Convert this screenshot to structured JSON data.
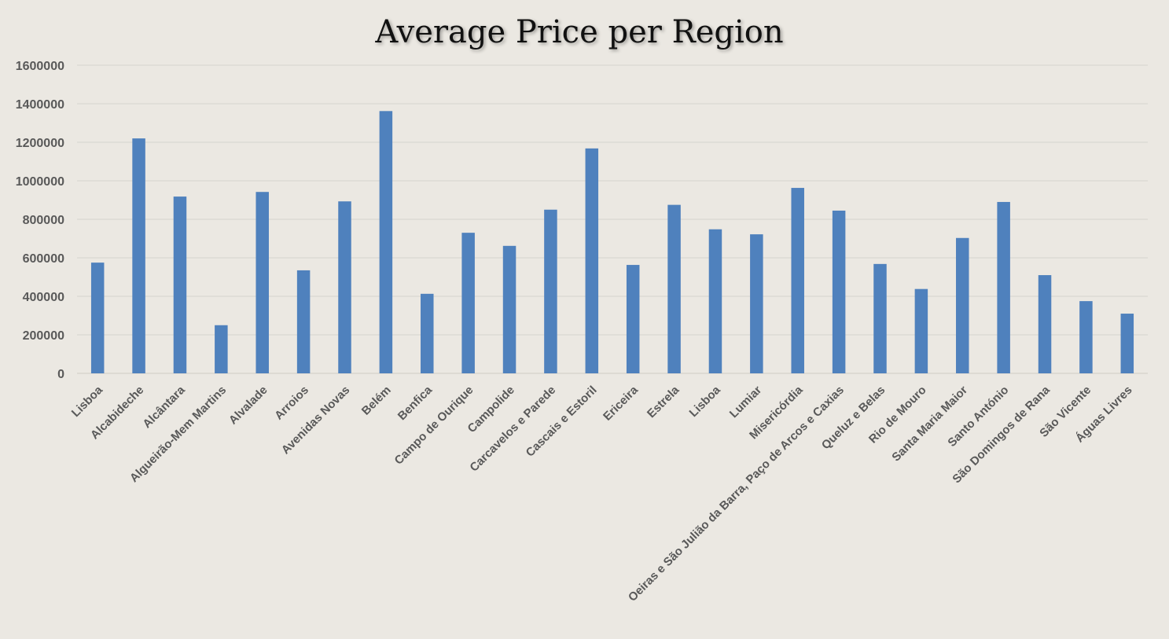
{
  "chart_data": {
    "type": "bar",
    "title": "Average Price per Region",
    "xlabel": "",
    "ylabel": "",
    "ylim": [
      0,
      1600000
    ],
    "yticks": [
      0,
      200000,
      400000,
      600000,
      800000,
      1000000,
      1200000,
      1400000,
      1600000
    ],
    "ytick_labels": [
      "0",
      "200000",
      "400000",
      "600000",
      "800000",
      "1000000",
      "1200000",
      "1400000",
      "1600000"
    ],
    "grid": true,
    "legend": "none",
    "bar_color": "#4f81bd",
    "background_color": "#ebe8e2",
    "categories": [
      "Lisboa",
      "Alcabideche",
      "Alcântara",
      "Algueirão-Mem Martins",
      "Alvalade",
      "Arroios",
      "Avenidas Novas",
      "Belém",
      "Benfica",
      "Campo de Ourique",
      "Campolide",
      "Carcavelos e Parede",
      "Cascais e Estoril",
      "Ericeira",
      "Estrela",
      "Lisboa",
      "Lumiar",
      "Misericórdia",
      "Oeiras e São Julião da Barra, Paço de Arcos e Caxias",
      "Queluz e Belas",
      "Rio de Mouro",
      "Santa Maria Maior",
      "Santo António",
      "São Domingos de Rana",
      "São Vicente",
      "Águas Livres"
    ],
    "values": [
      575000,
      1220000,
      918000,
      250000,
      942000,
      535000,
      893000,
      1362000,
      413000,
      730000,
      662000,
      850000,
      1168000,
      563000,
      875000,
      748000,
      722000,
      963000,
      845000,
      568000,
      438000,
      703000,
      890000,
      510000,
      375000,
      310000
    ]
  }
}
